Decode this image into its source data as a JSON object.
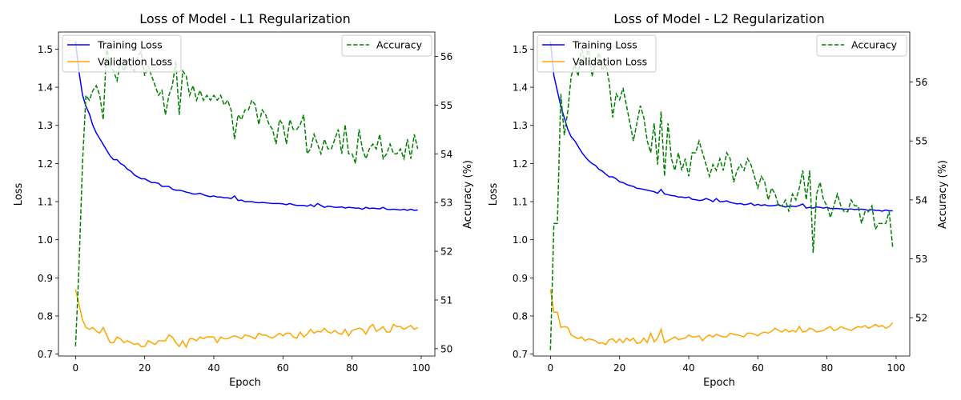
{
  "figure": {
    "background": "#ffffff"
  },
  "colors": {
    "training": "#0000ff",
    "validation": "#ffa500",
    "accuracy": "#008000"
  },
  "chart_data": [
    {
      "type": "line",
      "title": "Loss of Model - L1 Regularization",
      "xlabel": "Epoch",
      "ylabel": "Loss",
      "y2label": "Accuracy (%)",
      "xlim": [
        -4.95,
        103.95
      ],
      "ylim": [
        0.695,
        1.545
      ],
      "y2lim": [
        49.85,
        56.5
      ],
      "xticks": [
        0,
        20,
        40,
        60,
        80,
        100
      ],
      "yticks": [
        0.7,
        0.8,
        0.9,
        1.0,
        1.1,
        1.2,
        1.3,
        1.4,
        1.5
      ],
      "y2ticks": [
        50,
        51,
        52,
        53,
        54,
        55,
        56
      ],
      "legend_left": {
        "placement": "upper-left",
        "entries": [
          "Training Loss",
          "Validation Loss"
        ]
      },
      "legend_right": {
        "placement": "upper-right",
        "entries": [
          "Accuracy"
        ]
      },
      "grid": false,
      "x": [
        0,
        1,
        2,
        3,
        4,
        5,
        6,
        7,
        8,
        9,
        10,
        11,
        12,
        13,
        14,
        15,
        16,
        17,
        18,
        19,
        20,
        21,
        22,
        23,
        24,
        25,
        26,
        27,
        28,
        29,
        30,
        31,
        32,
        33,
        34,
        35,
        36,
        37,
        38,
        39,
        40,
        41,
        42,
        43,
        44,
        45,
        46,
        47,
        48,
        49,
        50,
        51,
        52,
        53,
        54,
        55,
        56,
        57,
        58,
        59,
        60,
        61,
        62,
        63,
        64,
        65,
        66,
        67,
        68,
        69,
        70,
        71,
        72,
        73,
        74,
        75,
        76,
        77,
        78,
        79,
        80,
        81,
        82,
        83,
        84,
        85,
        86,
        87,
        88,
        89,
        90,
        91,
        92,
        93,
        94,
        95,
        96,
        97,
        98,
        99
      ],
      "series": [
        {
          "name": "Training Loss",
          "axis": "left",
          "style": "solid",
          "values": [
            1.52,
            1.44,
            1.38,
            1.35,
            1.33,
            1.3,
            1.28,
            1.265,
            1.25,
            1.235,
            1.22,
            1.21,
            1.21,
            1.2,
            1.195,
            1.185,
            1.18,
            1.17,
            1.165,
            1.16,
            1.16,
            1.155,
            1.15,
            1.15,
            1.148,
            1.14,
            1.14,
            1.14,
            1.133,
            1.13,
            1.13,
            1.128,
            1.125,
            1.123,
            1.12,
            1.12,
            1.122,
            1.118,
            1.115,
            1.113,
            1.115,
            1.112,
            1.112,
            1.11,
            1.11,
            1.108,
            1.115,
            1.103,
            1.104,
            1.1,
            1.1,
            1.1,
            1.098,
            1.097,
            1.098,
            1.097,
            1.096,
            1.095,
            1.095,
            1.095,
            1.094,
            1.092,
            1.095,
            1.092,
            1.09,
            1.09,
            1.09,
            1.088,
            1.092,
            1.087,
            1.095,
            1.09,
            1.085,
            1.088,
            1.087,
            1.085,
            1.085,
            1.086,
            1.083,
            1.085,
            1.084,
            1.083,
            1.083,
            1.08,
            1.085,
            1.082,
            1.083,
            1.082,
            1.081,
            1.085,
            1.08,
            1.079,
            1.08,
            1.079,
            1.078,
            1.08,
            1.077,
            1.08,
            1.077,
            1.078
          ]
        },
        {
          "name": "Validation Loss",
          "axis": "left",
          "style": "solid",
          "values": [
            0.87,
            0.83,
            0.79,
            0.77,
            0.765,
            0.77,
            0.76,
            0.755,
            0.77,
            0.75,
            0.73,
            0.73,
            0.745,
            0.74,
            0.73,
            0.735,
            0.73,
            0.725,
            0.728,
            0.72,
            0.72,
            0.735,
            0.73,
            0.725,
            0.735,
            0.735,
            0.735,
            0.75,
            0.745,
            0.73,
            0.72,
            0.735,
            0.718,
            0.74,
            0.74,
            0.735,
            0.745,
            0.74,
            0.745,
            0.745,
            0.745,
            0.73,
            0.745,
            0.74,
            0.74,
            0.745,
            0.748,
            0.745,
            0.74,
            0.75,
            0.748,
            0.745,
            0.74,
            0.755,
            0.75,
            0.75,
            0.745,
            0.742,
            0.748,
            0.755,
            0.748,
            0.755,
            0.755,
            0.745,
            0.742,
            0.758,
            0.745,
            0.752,
            0.765,
            0.755,
            0.76,
            0.758,
            0.768,
            0.758,
            0.755,
            0.762,
            0.755,
            0.752,
            0.765,
            0.748,
            0.762,
            0.765,
            0.768,
            0.765,
            0.752,
            0.77,
            0.778,
            0.76,
            0.765,
            0.772,
            0.758,
            0.758,
            0.778,
            0.772,
            0.772,
            0.765,
            0.77,
            0.775,
            0.765,
            0.77
          ]
        },
        {
          "name": "Accuracy",
          "axis": "right",
          "style": "dashed",
          "values": [
            50.05,
            51.7,
            53.8,
            55.2,
            55.1,
            55.3,
            55.4,
            55.2,
            54.7,
            56.2,
            55.8,
            55.7,
            55.5,
            55.9,
            55.7,
            55.9,
            55.8,
            55.7,
            56.0,
            56.1,
            55.6,
            55.8,
            55.6,
            55.4,
            55.2,
            55.3,
            54.8,
            55.2,
            55.4,
            55.9,
            54.8,
            55.7,
            55.6,
            55.2,
            55.4,
            55.1,
            55.3,
            55.1,
            55.2,
            55.1,
            55.2,
            55.1,
            55.2,
            55.0,
            55.1,
            54.9,
            54.3,
            54.8,
            54.7,
            54.9,
            54.9,
            55.1,
            55.0,
            54.6,
            54.9,
            54.8,
            54.6,
            54.5,
            54.2,
            54.7,
            54.6,
            54.2,
            54.7,
            54.5,
            54.5,
            54.6,
            54.8,
            54.0,
            54.1,
            54.4,
            54.2,
            54.0,
            54.3,
            54.1,
            54.1,
            54.3,
            54.5,
            54.0,
            54.6,
            54.0,
            54.0,
            53.8,
            54.5,
            54.1,
            53.9,
            54.1,
            54.2,
            54.1,
            54.4,
            53.9,
            54.0,
            54.2,
            54.0,
            54.0,
            54.1,
            53.9,
            54.3,
            53.9,
            54.4,
            54.1
          ]
        }
      ]
    },
    {
      "type": "line",
      "title": "Loss of Model - L2 Regularization",
      "xlabel": "Epoch",
      "ylabel": "Loss",
      "y2label": "Accuracy (%)",
      "xlim": [
        -4.95,
        103.95
      ],
      "ylim": [
        0.695,
        1.545
      ],
      "y2lim": [
        51.35,
        56.85
      ],
      "xticks": [
        0,
        20,
        40,
        60,
        80,
        100
      ],
      "yticks": [
        0.7,
        0.8,
        0.9,
        1.0,
        1.1,
        1.2,
        1.3,
        1.4,
        1.5
      ],
      "y2ticks": [
        52,
        53,
        54,
        55,
        56
      ],
      "legend_left": {
        "placement": "upper-left",
        "entries": [
          "Training Loss",
          "Validation Loss"
        ]
      },
      "legend_right": {
        "placement": "upper-right",
        "entries": [
          "Accuracy"
        ]
      },
      "grid": false,
      "x": [
        0,
        1,
        2,
        3,
        4,
        5,
        6,
        7,
        8,
        9,
        10,
        11,
        12,
        13,
        14,
        15,
        16,
        17,
        18,
        19,
        20,
        21,
        22,
        23,
        24,
        25,
        26,
        27,
        28,
        29,
        30,
        31,
        32,
        33,
        34,
        35,
        36,
        37,
        38,
        39,
        40,
        41,
        42,
        43,
        44,
        45,
        46,
        47,
        48,
        49,
        50,
        51,
        52,
        53,
        54,
        55,
        56,
        57,
        58,
        59,
        60,
        61,
        62,
        63,
        64,
        65,
        66,
        67,
        68,
        69,
        70,
        71,
        72,
        73,
        74,
        75,
        76,
        77,
        78,
        79,
        80,
        81,
        82,
        83,
        84,
        85,
        86,
        87,
        88,
        89,
        90,
        91,
        92,
        93,
        94,
        95,
        96,
        97,
        98,
        99
      ],
      "series": [
        {
          "name": "Training Loss",
          "axis": "left",
          "style": "solid",
          "values": [
            1.52,
            1.43,
            1.39,
            1.35,
            1.32,
            1.29,
            1.27,
            1.26,
            1.245,
            1.23,
            1.218,
            1.208,
            1.2,
            1.195,
            1.185,
            1.18,
            1.172,
            1.165,
            1.165,
            1.16,
            1.152,
            1.15,
            1.145,
            1.142,
            1.14,
            1.135,
            1.134,
            1.132,
            1.13,
            1.128,
            1.126,
            1.122,
            1.132,
            1.12,
            1.118,
            1.116,
            1.115,
            1.112,
            1.112,
            1.11,
            1.112,
            1.106,
            1.105,
            1.103,
            1.104,
            1.108,
            1.105,
            1.1,
            1.108,
            1.1,
            1.1,
            1.102,
            1.098,
            1.096,
            1.094,
            1.095,
            1.092,
            1.093,
            1.096,
            1.09,
            1.093,
            1.09,
            1.092,
            1.089,
            1.089,
            1.09,
            1.092,
            1.088,
            1.086,
            1.088,
            1.088,
            1.087,
            1.09,
            1.094,
            1.083,
            1.085,
            1.083,
            1.086,
            1.085,
            1.083,
            1.085,
            1.082,
            1.082,
            1.082,
            1.081,
            1.08,
            1.08,
            1.081,
            1.079,
            1.08,
            1.08,
            1.079,
            1.077,
            1.079,
            1.077,
            1.077,
            1.075,
            1.078,
            1.076,
            1.076
          ]
        },
        {
          "name": "Validation Loss",
          "axis": "left",
          "style": "solid",
          "values": [
            0.87,
            0.81,
            0.81,
            0.77,
            0.772,
            0.77,
            0.75,
            0.745,
            0.74,
            0.745,
            0.735,
            0.74,
            0.738,
            0.735,
            0.728,
            0.73,
            0.725,
            0.738,
            0.74,
            0.73,
            0.74,
            0.73,
            0.742,
            0.735,
            0.742,
            0.728,
            0.73,
            0.742,
            0.73,
            0.755,
            0.732,
            0.742,
            0.765,
            0.73,
            0.735,
            0.74,
            0.745,
            0.738,
            0.74,
            0.742,
            0.75,
            0.745,
            0.745,
            0.748,
            0.735,
            0.745,
            0.75,
            0.745,
            0.752,
            0.748,
            0.745,
            0.745,
            0.755,
            0.752,
            0.75,
            0.748,
            0.745,
            0.755,
            0.755,
            0.752,
            0.748,
            0.755,
            0.758,
            0.755,
            0.76,
            0.768,
            0.762,
            0.758,
            0.765,
            0.758,
            0.762,
            0.758,
            0.772,
            0.758,
            0.76,
            0.768,
            0.765,
            0.758,
            0.76,
            0.762,
            0.768,
            0.772,
            0.762,
            0.765,
            0.772,
            0.768,
            0.765,
            0.762,
            0.768,
            0.772,
            0.77,
            0.775,
            0.768,
            0.772,
            0.778,
            0.772,
            0.775,
            0.768,
            0.772,
            0.782
          ]
        },
        {
          "name": "Accuracy",
          "axis": "right",
          "style": "dashed",
          "values": [
            51.45,
            53.6,
            53.6,
            55.8,
            55.1,
            55.5,
            56.1,
            56.3,
            56.1,
            56.6,
            56.3,
            56.6,
            56.1,
            56.3,
            56.5,
            56.2,
            56.3,
            56.0,
            55.4,
            55.8,
            55.7,
            55.9,
            55.6,
            55.3,
            55.0,
            55.3,
            55.6,
            55.4,
            55.0,
            54.8,
            55.3,
            54.6,
            55.5,
            54.4,
            55.3,
            54.7,
            54.5,
            54.8,
            54.5,
            54.7,
            54.4,
            54.8,
            54.8,
            55.0,
            54.8,
            54.6,
            54.4,
            54.6,
            54.5,
            54.7,
            54.5,
            54.8,
            54.7,
            54.3,
            54.5,
            54.6,
            54.5,
            54.7,
            54.6,
            54.4,
            54.2,
            54.4,
            54.3,
            54.0,
            54.2,
            54.1,
            53.9,
            53.9,
            54.0,
            53.8,
            54.1,
            54.0,
            54.2,
            54.5,
            54.0,
            54.5,
            53.1,
            54.1,
            54.3,
            54.0,
            53.9,
            53.7,
            53.9,
            54.1,
            53.9,
            53.8,
            53.8,
            54.0,
            53.9,
            53.9,
            53.6,
            53.8,
            53.8,
            53.9,
            53.5,
            53.6,
            53.6,
            53.6,
            53.8,
            53.2
          ]
        }
      ]
    }
  ]
}
